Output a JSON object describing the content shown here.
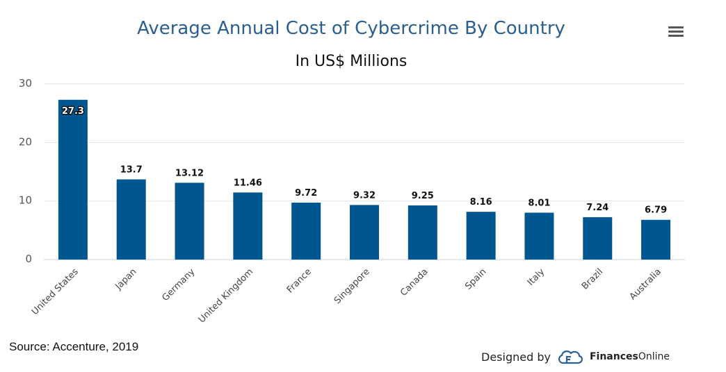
{
  "header": {
    "menu_icon": "hamburger-menu-icon"
  },
  "footer": {
    "source": "Source: Accenture, 2019",
    "credit_prefix": "Designed by",
    "brand_bold": "Finances",
    "brand_rest": "Online",
    "brand_logo_icon": "financesonline-logo-icon"
  },
  "chart_data": {
    "type": "bar",
    "title": "Average Annual Cost of Cybercrime By Country",
    "subtitle": "In US$ Millions",
    "xlabel": "",
    "ylabel": "",
    "ylim": [
      0,
      30
    ],
    "yticks": [
      0,
      10,
      20,
      30
    ],
    "grid": true,
    "legend": "none",
    "colors": {
      "bar": "#00568f",
      "title": "#2a5f8f",
      "grid": "#e6e6e6"
    },
    "categories": [
      "United States",
      "Japan",
      "Germany",
      "United Kingdom",
      "France",
      "Singapore",
      "Canada",
      "Spain",
      "Italy",
      "Brazil",
      "Australia"
    ],
    "values": [
      27.3,
      13.7,
      13.12,
      11.46,
      9.72,
      9.32,
      9.25,
      8.16,
      8.01,
      7.24,
      6.79
    ],
    "value_labels": [
      "27.3",
      "13.7",
      "13.12",
      "11.46",
      "9.72",
      "9.32",
      "9.25",
      "8.16",
      "8.01",
      "7.24",
      "6.79"
    ]
  }
}
